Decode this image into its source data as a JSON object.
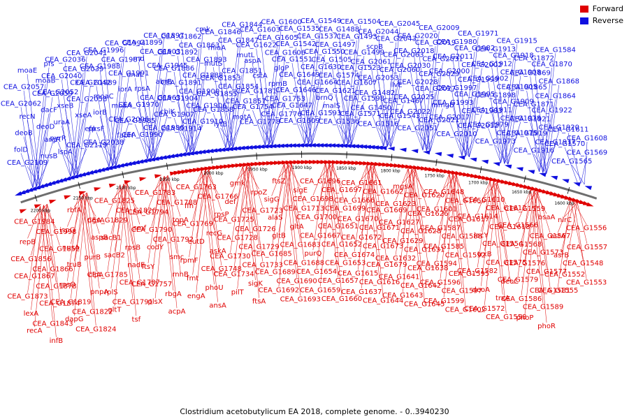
{
  "caption": "Clostridium acetobutylicum EA 2018, complete genome. - 0..3940230",
  "legend": [
    {
      "label": "Forward",
      "color": "#e00000"
    },
    {
      "label": "Reverse",
      "color": "#1010e0"
    }
  ],
  "colors": {
    "forward": "#e00000",
    "reverse": "#1010e0",
    "backbone": "#6e6e6e"
  },
  "scale_ticks": [
    "2200 kbp",
    "2150 kbp",
    "2100 kbp",
    "2050 kbp",
    "2000 kbp",
    "1950 kbp",
    "1900 kbp",
    "1850 kbp",
    "1800 kbp",
    "1750 kbp",
    "1700 kbp",
    "1650 kbp",
    "1600 kbp"
  ],
  "reverse_labels": [
    "CEA_G2109",
    "nusB",
    "folD",
    "argR",
    "deoB",
    "deoD",
    "recN",
    "dacF",
    "CEA_G2062",
    "CEA_G2059",
    "CEA_G2057",
    "moaB",
    "moaE",
    "pfs",
    "lspA",
    "CEA_G2119",
    "pyrR",
    "efp",
    "uraA",
    "xseA",
    "xseB",
    "CEA_G2058",
    "CEA_G2052",
    "CEA_G2042",
    "CEA_G2040",
    "CEA_G2039",
    "CEA_G2036",
    "CEA_G2041",
    "CEA_G2038",
    "fabH",
    "pksF",
    "CEA_G2006",
    "iorB",
    "moaA",
    "moaC",
    "iorA",
    "CEA_G1989",
    "CEA_G1991",
    "CEA_G1988",
    "CEA_G1987",
    "CEA_G1996",
    "CEA_G1994",
    "CEA_G1990",
    "CEA_G1986",
    "CEA_G1985",
    "cbiK",
    "CEA_G1970",
    "CEA_G1963",
    "rpsA",
    "abrB",
    "dnaL",
    "CEA_G1945",
    "rnd",
    "CEA_G1903",
    "CEA_G1899",
    "CEA_G1897",
    "CEA_G1914",
    "CEA_G1910",
    "CEA_G1907",
    "CEA_G1906",
    "CEA_G1904",
    "CEA_G1900",
    "CEA_G1891",
    "CEA_G1888",
    "CEA_G1886",
    "CEA_G1893",
    "CEA_G1892",
    "CEA_G1863",
    "CEA_G1862",
    "cmk",
    "lytB",
    "motA",
    "CEA_G1858",
    "CEA_G1857",
    "CEA_G1855",
    "CEA_G1854",
    "CEA_G1853",
    "CEA_G1851",
    "mutS",
    "mutL",
    "miaA",
    "CEA_G1847",
    "CEA_G1846",
    "CEA_G1844",
    "CEA_G1778",
    "CEA_G1776",
    "CEA_G1754",
    "CEA_G1753",
    "CEA_G1781",
    "rpmB",
    "cstA",
    "glgP",
    "aspA",
    "CEA_G1606",
    "CEA_G1622",
    "CEA_G1605",
    "CEA_G1603",
    "CEA_G1600",
    "CEA_G1609",
    "CEA_G1593",
    "CEA_G1647",
    "brnQ",
    "CEA_G1646",
    "CEA_G1664",
    "CEA_G1649",
    "CEA_G1630",
    "CEA_G1551",
    "CEA_G1550",
    "CEA_G1542",
    "CEA_G1537",
    "CEA_G1535",
    "CEA_G1549",
    "CEA_G1536",
    "CEA_G1571",
    "malS",
    "CEA_G1598",
    "CEA_G1621",
    "CEA_G1607",
    "CEA_G1574",
    "CEA_G1523",
    "CEA_G1505",
    "CEA_G1499",
    "CEA_G1497",
    "CEA_G1493",
    "CEA_G1488",
    "CEA_G1504",
    "CEA_G1516",
    "CEA_G1543",
    "CEA_G1450",
    "CEA_G1467",
    "CEA_G1482",
    "ilvE",
    "CEA_G2053",
    "CEA_G2060",
    "CEA_G2061",
    "CEA_G2063",
    "scpB",
    "CEA_G2043",
    "CEA_G2044",
    "CEA_G2045",
    "CEA_G2051",
    "CEA_G2021",
    "CEA_G2022",
    "mmgB",
    "CEA_G2025",
    "CEA_G2027",
    "CEA_G2028",
    "CEA_G2029",
    "CEA_G2030",
    "CEA_G2031",
    "CEA_G2018",
    "CEA_G2019",
    "CEA_G2020",
    "CEA_G2009",
    "CEA_G2010",
    "CEA_G2012",
    "CEA_G2017",
    "CEA_G1983",
    "CEA_G1993",
    "CEA_G1995",
    "CEA_G1997",
    "CEA_G1999",
    "CEA_G2000",
    "CEA_G2002",
    "CEA_G2011",
    "CEA_G1982",
    "CEA_G1980",
    "CEA_G1971",
    "CEA_G1973",
    "CEA_G1975",
    "CEA_G1979",
    "CEA_G1978",
    "CEA_G1911",
    "CEA_G1909",
    "CEA_G1898",
    "CEA_G1905",
    "CEA_G1902",
    "CEA_G1908",
    "CEA_G1912",
    "CEA_G1918",
    "CEA_G1913",
    "CEA_G1915",
    "CEA_G1916",
    "CEA_G1917",
    "CEA_G1919",
    "CEA_G1920",
    "CEA_G1921",
    "CEA_G1922",
    "CEA_G1871",
    "CEA_G1864",
    "CEA_G1865",
    "CEA_G1868",
    "CEA_G1869",
    "CEA_G1870",
    "CEA_G1872",
    "CEA_G1584",
    "CEA_G1565",
    "CEA_G1569",
    "CEA_G1570",
    "CEA_G1608",
    "CEA_G1611"
  ],
  "forward_labels": [
    "CEA_G1984",
    "CEA_G1998",
    "repB",
    "CEA_G1852",
    "CEA_G1856",
    "CEA_G1866",
    "CEA_G1867",
    "CEA_G1878",
    "CEA_G1873",
    "CEA_G1874",
    "lexA",
    "CEA_G1843",
    "recA",
    "infB",
    "rbfA",
    "pgsA",
    "ispG",
    "aspB",
    "nusA",
    "purB",
    "truB",
    "clpA",
    "rpsO",
    "pnpA",
    "CEA_G1819",
    "CEA_G1822",
    "dapG",
    "CEA_G1824",
    "CEA_G1825",
    "CEA_G1826",
    "CEA_G1829",
    "smf",
    "sacB1",
    "rpsB",
    "sacB2",
    "nadE",
    "CEA_G1785",
    "CEA_G1787",
    "rplS",
    "CEA_G1791",
    "gltT",
    "tsf",
    "CEA_G1783",
    "CEA_G1788",
    "CEA_G1794",
    "topA",
    "CEA_G1790",
    "CEA_G1792",
    "codY",
    "smc",
    "ftsY",
    "rnhB",
    "CEA_G1757",
    "rbgA",
    "plsX",
    "acpA",
    "CEA_G1763",
    "CEA_G1766",
    "ffh",
    "rpsP",
    "CEA_G1769",
    "recG",
    "eutD",
    "askA",
    "rpmF",
    "CEA_G1748",
    "fmt",
    "phoU",
    "engA",
    "ansA",
    "gmk",
    "rpoZ",
    "def",
    "CEA_G1723",
    "CEA_G1725",
    "CEA_G1726",
    "CEA_G1728",
    "CEA_G1729",
    "CEA_G1730",
    "CEA_G1733",
    "CEA_G1734",
    "sigK",
    "pilT",
    "ftsA",
    "ftsZ",
    "sigE",
    "sigG",
    "CEA_G1713",
    "alaS",
    "gltA",
    "gltB",
    "CEA_G1683",
    "CEA_G1685",
    "CEA_G1688",
    "CEA_G1689",
    "CEA_G1690",
    "CEA_G1692",
    "CEA_G1693",
    "CEA_G1696",
    "CEA_G1697",
    "CEA_G1698",
    "CEA_G1699",
    "CEA_G1700",
    "CEA_G1651",
    "CEA_G1667",
    "CEA_G1652",
    "purQ",
    "CEA_G1653",
    "CEA_G1654",
    "CEA_G1657",
    "CEA_G1659",
    "CEA_G1660",
    "CEA_G1661",
    "CEA_G1662",
    "CEA_G1666",
    "CEA_G1669",
    "CEA_G1670",
    "CEA_G1671",
    "CEA_G1672",
    "CEA_G1673",
    "CEA_G1674",
    "CEA_G1679",
    "CEA_G1615",
    "CEA_G1616",
    "CEA_G1637",
    "CEA_G1644",
    "mgsA",
    "CEA_G1620",
    "CEA_G1623",
    "CEA_G1626",
    "CEA_G1627",
    "CEA_G1628",
    "CEA_G1629",
    "CEA_G1631",
    "CEA_G1632",
    "CEA_G1638",
    "CEA_G1641",
    "CEA_G1642",
    "CEA_G1643",
    "CEA_G1645",
    "CEA_G1648",
    "CEA_G1650",
    "CEA_G1601",
    "CEA_G1617",
    "CEA_G1587",
    "CEA_G1588",
    "CEA_G1585",
    "CEA_G1592",
    "CEA_G1594",
    "CEA_G1595",
    "CEA_G1596",
    "CEA_G1597",
    "CEA_G1599",
    "CEA_G1602",
    "CEA_G1610",
    "CEA_G1612",
    "CEA_G1614",
    "CEA_G1618",
    "lacY",
    "CEA_G1554",
    "trxB",
    "CEA_G1575",
    "CEA_G1582",
    "deoC",
    "deoA",
    "trxA",
    "CEA_G1572",
    "CEA_G1558",
    "CEA_G1559",
    "bsaA",
    "CEA_G1566",
    "CEA_G1567",
    "CEA_G1568",
    "CEA_G1573",
    "CEA_G1576",
    "CEA_G1577",
    "CEA_G1579",
    "CEA_G1581",
    "CEA_G1586",
    "CEA_G1589",
    "phoP",
    "phoR",
    "nirC",
    "CEA_G1556",
    "asrA",
    "CEA_G1557",
    "asrB",
    "CEA_G1548",
    "CEA_G1552",
    "CEA_G1553",
    "CEA_G1555"
  ]
}
